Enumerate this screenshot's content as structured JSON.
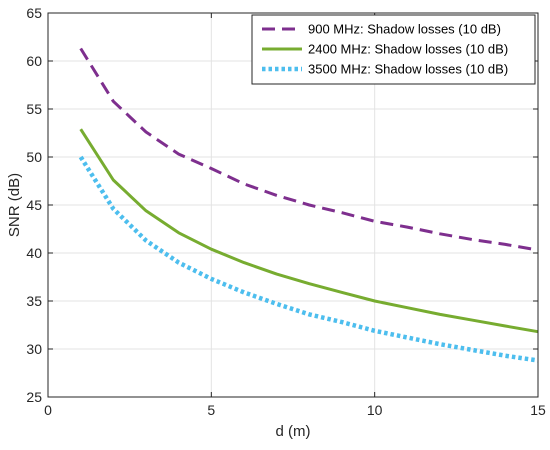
{
  "chart_data": {
    "type": "line",
    "xlabel": "d (m)",
    "ylabel": "SNR (dB)",
    "xlim": [
      0,
      15
    ],
    "ylim": [
      25,
      65
    ],
    "xticks": [
      0,
      5,
      10,
      15
    ],
    "yticks": [
      25,
      30,
      35,
      40,
      45,
      50,
      55,
      60,
      65
    ],
    "grid": true,
    "legend_position": "top-right",
    "x": [
      1,
      2,
      3,
      4,
      5,
      6,
      7,
      8,
      9,
      10,
      11,
      12,
      13,
      14,
      15
    ],
    "series": [
      {
        "name": "900 MHz: Shadow losses (10 dB)",
        "color": "#7e2f8e",
        "style": "dashed",
        "values": [
          61.3,
          55.8,
          52.6,
          50.3,
          48.8,
          47.2,
          46.0,
          45.0,
          44.2,
          43.3,
          42.7,
          42.0,
          41.4,
          40.9,
          40.3
        ]
      },
      {
        "name": "2400 MHz: Shadow losses (10 dB)",
        "color": "#77ac30",
        "style": "solid",
        "values": [
          52.9,
          47.6,
          44.4,
          42.1,
          40.4,
          39.0,
          37.8,
          36.8,
          35.9,
          35.0,
          34.3,
          33.6,
          33.0,
          32.4,
          31.8
        ]
      },
      {
        "name": "3500 MHz: Shadow losses (10 dB)",
        "color": "#4dbeee",
        "style": "dotted",
        "values": [
          50.0,
          44.6,
          41.3,
          39.0,
          37.3,
          35.9,
          34.7,
          33.6,
          32.8,
          31.9,
          31.2,
          30.5,
          29.9,
          29.3,
          28.8
        ]
      }
    ]
  }
}
